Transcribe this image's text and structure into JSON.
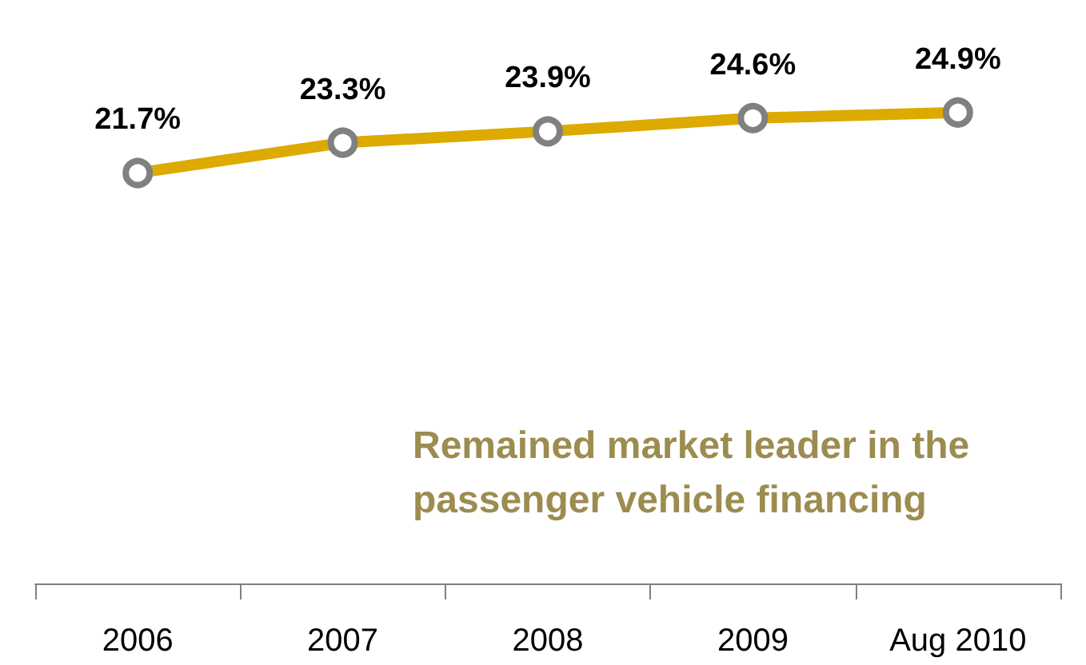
{
  "chart_data": {
    "type": "line",
    "categories": [
      "2006",
      "2007",
      "2008",
      "2009",
      "Aug 2010"
    ],
    "series": [
      {
        "color": "#dcaa00",
        "values": [
          21.7,
          23.3,
          23.9,
          24.6,
          24.9
        ],
        "value_labels": [
          "21.7%",
          "23.3%",
          "23.9%",
          "24.6%",
          "24.9%"
        ]
      }
    ],
    "tick_labels": "x",
    "grid": false,
    "marker": "circle",
    "line_style": "solid",
    "annotations": [
      "Remained market leader in the passenger vehicle financing"
    ]
  }
}
